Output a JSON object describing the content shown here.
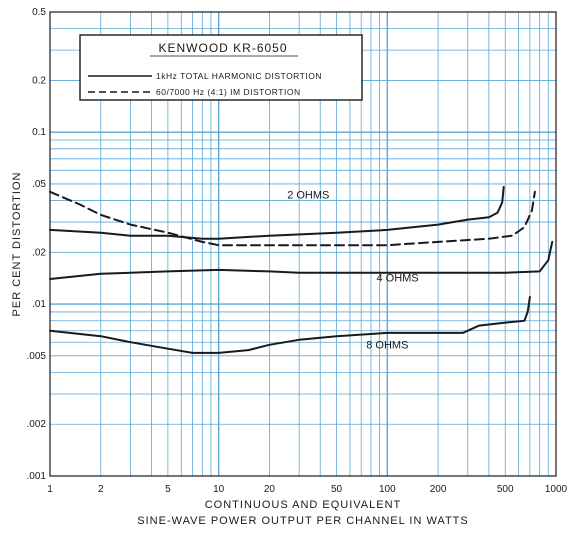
{
  "chart_data": {
    "type": "line",
    "xlabel_line1": "CONTINUOUS AND EQUIVALENT",
    "xlabel_line2": "SINE-WAVE POWER OUTPUT PER CHANNEL IN WATTS",
    "ylabel": "PER CENT DISTORTION",
    "x_scale": "log",
    "y_scale": "log",
    "xlim": [
      1,
      1000
    ],
    "ylim": [
      0.001,
      0.5
    ],
    "grid": true,
    "x_ticks": [
      {
        "value": 1,
        "label": "1"
      },
      {
        "value": 2,
        "label": "2"
      },
      {
        "value": 5,
        "label": "5"
      },
      {
        "value": 10,
        "label": "10"
      },
      {
        "value": 20,
        "label": "20"
      },
      {
        "value": 50,
        "label": "50"
      },
      {
        "value": 100,
        "label": "100"
      },
      {
        "value": 200,
        "label": "200"
      },
      {
        "value": 500,
        "label": "500"
      },
      {
        "value": 1000,
        "label": "1000"
      }
    ],
    "y_ticks": [
      {
        "value": 0.5,
        "label": "0.5"
      },
      {
        "value": 0.2,
        "label": "0.2"
      },
      {
        "value": 0.1,
        "label": "0.1"
      },
      {
        "value": 0.05,
        "label": ".05"
      },
      {
        "value": 0.02,
        "label": ".02"
      },
      {
        "value": 0.01,
        "label": ".01"
      },
      {
        "value": 0.005,
        "label": ".005"
      },
      {
        "value": 0.002,
        "label": ".002"
      },
      {
        "value": 0.001,
        "label": ".001"
      }
    ],
    "legend": {
      "title": "KENWOOD KR-6050",
      "placement": "top-left",
      "entries": [
        {
          "label": "1kHz TOTAL HARMONIC DISTORTION",
          "style": "solid"
        },
        {
          "label": "60/7000 Hz (4:1) IM DISTORTION",
          "style": "dashed"
        }
      ]
    },
    "series": [
      {
        "style": "solid",
        "annotation": "2 OHMS",
        "annotation_at": [
          34,
          0.041
        ],
        "points": [
          [
            1,
            0.027
          ],
          [
            2,
            0.026
          ],
          [
            3,
            0.025
          ],
          [
            5,
            0.025
          ],
          [
            8,
            0.024
          ],
          [
            10,
            0.024
          ],
          [
            20,
            0.025
          ],
          [
            50,
            0.026
          ],
          [
            100,
            0.027
          ],
          [
            200,
            0.029
          ],
          [
            300,
            0.031
          ],
          [
            400,
            0.032
          ],
          [
            450,
            0.034
          ],
          [
            480,
            0.039
          ],
          [
            490,
            0.048
          ]
        ]
      },
      {
        "style": "solid",
        "annotation": "4 OHMS",
        "annotation_at": [
          115,
          0.0135
        ],
        "points": [
          [
            1,
            0.014
          ],
          [
            2,
            0.015
          ],
          [
            5,
            0.0155
          ],
          [
            10,
            0.0158
          ],
          [
            20,
            0.0155
          ],
          [
            30,
            0.0152
          ],
          [
            50,
            0.0152
          ],
          [
            100,
            0.0152
          ],
          [
            200,
            0.0152
          ],
          [
            500,
            0.0152
          ],
          [
            800,
            0.0155
          ],
          [
            900,
            0.018
          ],
          [
            950,
            0.023
          ]
        ]
      },
      {
        "style": "solid",
        "annotation": "8 OHMS",
        "annotation_at": [
          100,
          0.0055
        ],
        "points": [
          [
            1,
            0.007
          ],
          [
            2,
            0.0065
          ],
          [
            3,
            0.006
          ],
          [
            5,
            0.0055
          ],
          [
            7,
            0.0052
          ],
          [
            10,
            0.0052
          ],
          [
            15,
            0.0054
          ],
          [
            20,
            0.0058
          ],
          [
            30,
            0.0062
          ],
          [
            50,
            0.0065
          ],
          [
            100,
            0.0068
          ],
          [
            200,
            0.0068
          ],
          [
            280,
            0.0068
          ],
          [
            350,
            0.0075
          ],
          [
            500,
            0.0078
          ],
          [
            650,
            0.008
          ],
          [
            680,
            0.009
          ],
          [
            700,
            0.011
          ]
        ]
      },
      {
        "style": "dashed",
        "points": [
          [
            1,
            0.045
          ],
          [
            1.5,
            0.038
          ],
          [
            2,
            0.033
          ],
          [
            3,
            0.029
          ],
          [
            5,
            0.026
          ],
          [
            8,
            0.023
          ],
          [
            10,
            0.022
          ],
          [
            20,
            0.022
          ],
          [
            50,
            0.022
          ],
          [
            100,
            0.022
          ],
          [
            200,
            0.023
          ],
          [
            400,
            0.024
          ],
          [
            550,
            0.025
          ],
          [
            650,
            0.028
          ],
          [
            720,
            0.035
          ],
          [
            750,
            0.045
          ]
        ]
      }
    ]
  }
}
